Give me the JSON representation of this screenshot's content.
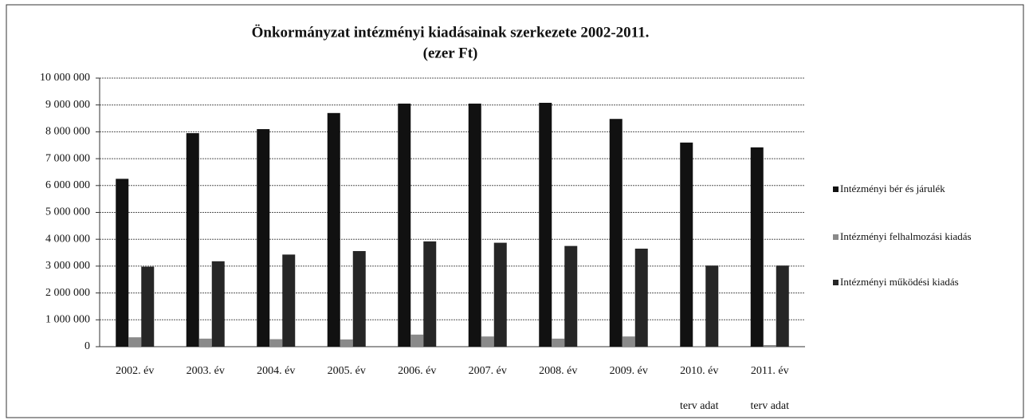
{
  "chart_data": {
    "type": "bar",
    "title": [
      "Önkormányzat intézményi kiadásainak szerkezete 2002-2011.",
      "(ezer Ft)"
    ],
    "categories": [
      [
        "2002. év"
      ],
      [
        "2003. év"
      ],
      [
        "2004. év"
      ],
      [
        "2005. év"
      ],
      [
        "2006. év"
      ],
      [
        "2007. év"
      ],
      [
        "2008. év"
      ],
      [
        "2009. év"
      ],
      [
        "2010. év",
        "terv adat"
      ],
      [
        "2011. év",
        "terv adat"
      ]
    ],
    "series": [
      {
        "name": "Intézményi bér és járulék",
        "color": "#111111",
        "values": [
          6250000,
          7950000,
          8100000,
          8700000,
          9050000,
          9050000,
          9080000,
          8480000,
          7600000,
          7420000
        ]
      },
      {
        "name": "Intézményi felhalmozási kiadás",
        "color": "#8a8a8a",
        "values": [
          350000,
          300000,
          280000,
          270000,
          450000,
          380000,
          300000,
          380000,
          20000,
          60000
        ]
      },
      {
        "name": "Intézményi működési kiadás",
        "color": "#262626",
        "values": [
          2980000,
          3180000,
          3430000,
          3560000,
          3920000,
          3870000,
          3750000,
          3650000,
          3020000,
          3020000
        ]
      }
    ],
    "ylim": [
      0,
      10000000
    ],
    "yticks": [
      0,
      {
        "value": 1000000,
        "label": "1 000 000"
      },
      {
        "value": 2000000,
        "label": "2 000 000"
      },
      {
        "value": 3000000,
        "label": "3 000 000"
      },
      {
        "value": 4000000,
        "label": "4 000 000"
      },
      {
        "value": 5000000,
        "label": "5 000 000"
      },
      {
        "value": 6000000,
        "label": "6 000 000"
      },
      {
        "value": 7000000,
        "label": "7 000 000"
      },
      {
        "value": 8000000,
        "label": "8 000 000"
      },
      {
        "value": 9000000,
        "label": "9 000 000"
      },
      {
        "value": 10000000,
        "label": "10 000 000"
      }
    ],
    "grid": true,
    "legend": "right"
  }
}
